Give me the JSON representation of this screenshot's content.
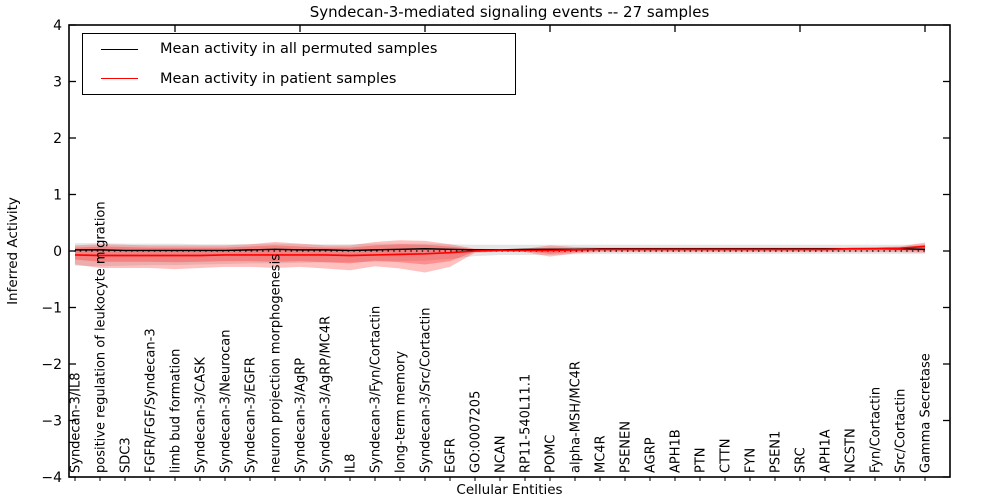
{
  "chart_data": {
    "type": "line",
    "title": "Syndecan-3-mediated signaling events -- 27 samples",
    "xlabel": "Cellular Entities",
    "ylabel": "Inferred Activity",
    "ylim": [
      -4,
      4
    ],
    "yticks": [
      -4,
      -3,
      -2,
      -1,
      0,
      1,
      2,
      3,
      4
    ],
    "grid": false,
    "legend_position": "upper left",
    "zero_reference_line": {
      "style": "dotted",
      "y": 0,
      "color": "#000000"
    },
    "categories": [
      "Syndecan-3/IL8",
      "positive regulation of leukocyte migration",
      "SDC3",
      "FGFR/FGF/Syndecan-3",
      "limb bud formation",
      "Syndecan-3/CASK",
      "Syndecan-3/Neurocan",
      "Syndecan-3/EGFR",
      "neuron projection morphogenesis",
      "Syndecan-3/AgRP",
      "Syndecan-3/AgRP/MC4R",
      "IL8",
      "Syndecan-3/Fyn/Cortactin",
      "long-term memory",
      "Syndecan-3/Src/Cortactin",
      "EGFR",
      "GO:0007205",
      "NCAN",
      "RP11-540L11.1",
      "POMC",
      "alpha-MSH/MC4R",
      "MC4R",
      "PSENEN",
      "AGRP",
      "APH1B",
      "PTN",
      "CTTN",
      "FYN",
      "PSEN1",
      "SRC",
      "APH1A",
      "NCSTN",
      "Fyn/Cortactin",
      "Src/Cortactin",
      "Gamma Secretase"
    ],
    "series": [
      {
        "name": "Mean activity in all permuted samples",
        "color": "#000000",
        "line_width": 1.4,
        "values": [
          0.02,
          0.02,
          0.01,
          0.01,
          0.01,
          0.01,
          0.01,
          0.02,
          0.03,
          0.02,
          0.02,
          0.01,
          0.02,
          0.03,
          0.04,
          0.03,
          0.02,
          0.02,
          0.03,
          0.03,
          0.03,
          0.04,
          0.04,
          0.04,
          0.04,
          0.04,
          0.04,
          0.04,
          0.04,
          0.04,
          0.04,
          0.04,
          0.04,
          0.04,
          0.03
        ]
      },
      {
        "name": "Mean activity in patient samples",
        "color": "#ff0000",
        "line_width": 1.7,
        "values": [
          -0.07,
          -0.08,
          -0.08,
          -0.08,
          -0.08,
          -0.08,
          -0.07,
          -0.07,
          -0.07,
          -0.07,
          -0.07,
          -0.08,
          -0.07,
          -0.06,
          -0.05,
          -0.03,
          0.0,
          0.01,
          0.01,
          0.01,
          0.02,
          0.03,
          0.03,
          0.03,
          0.03,
          0.03,
          0.03,
          0.03,
          0.03,
          0.03,
          0.03,
          0.04,
          0.04,
          0.05,
          0.08
        ]
      }
    ],
    "bands": [
      {
        "name": "permuted-samples-std-band",
        "fill": "rgba(0,0,0,0.10)",
        "upper": [
          0.14,
          0.14,
          0.13,
          0.13,
          0.13,
          0.12,
          0.12,
          0.12,
          0.13,
          0.12,
          0.12,
          0.12,
          0.13,
          0.13,
          0.13,
          0.12,
          0.11,
          0.11,
          0.11,
          0.11,
          0.11,
          0.11,
          0.11,
          0.11,
          0.11,
          0.11,
          0.11,
          0.11,
          0.11,
          0.11,
          0.11,
          0.11,
          0.11,
          0.11,
          0.12
        ],
        "lower": [
          -0.26,
          -0.27,
          -0.26,
          -0.25,
          -0.25,
          -0.24,
          -0.23,
          -0.22,
          -0.22,
          -0.21,
          -0.2,
          -0.2,
          -0.19,
          -0.18,
          -0.17,
          -0.14,
          -0.09,
          -0.07,
          -0.07,
          -0.07,
          -0.06,
          -0.05,
          -0.05,
          -0.05,
          -0.05,
          -0.05,
          -0.05,
          -0.05,
          -0.05,
          -0.05,
          -0.05,
          -0.05,
          -0.05,
          -0.05,
          -0.05
        ]
      },
      {
        "name": "patient-samples-std-band-outer",
        "fill": "rgba(255,30,30,0.28)",
        "upper": [
          0.1,
          0.12,
          0.11,
          0.1,
          0.1,
          0.1,
          0.1,
          0.12,
          0.16,
          0.13,
          0.1,
          0.1,
          0.16,
          0.19,
          0.18,
          0.12,
          0.04,
          0.03,
          0.04,
          0.1,
          0.07,
          0.06,
          0.06,
          0.06,
          0.06,
          0.06,
          0.06,
          0.06,
          0.06,
          0.06,
          0.06,
          0.06,
          0.07,
          0.08,
          0.15
        ],
        "lower": [
          -0.24,
          -0.3,
          -0.3,
          -0.3,
          -0.32,
          -0.3,
          -0.28,
          -0.28,
          -0.3,
          -0.28,
          -0.31,
          -0.34,
          -0.27,
          -0.31,
          -0.38,
          -0.28,
          -0.03,
          -0.01,
          -0.02,
          -0.1,
          -0.04,
          -0.02,
          -0.02,
          -0.02,
          -0.02,
          -0.02,
          -0.02,
          -0.02,
          -0.02,
          -0.02,
          -0.02,
          -0.02,
          -0.02,
          -0.02,
          -0.03
        ]
      },
      {
        "name": "patient-samples-std-band-inner",
        "fill": "rgba(255,30,30,0.30)",
        "upper": [
          0.06,
          0.08,
          0.07,
          0.06,
          0.06,
          0.06,
          0.06,
          0.08,
          0.1,
          0.08,
          0.06,
          0.06,
          0.1,
          0.12,
          0.11,
          0.08,
          0.03,
          0.02,
          0.03,
          0.06,
          0.05,
          0.05,
          0.05,
          0.05,
          0.05,
          0.05,
          0.05,
          0.05,
          0.05,
          0.05,
          0.05,
          0.05,
          0.05,
          0.06,
          0.11
        ],
        "lower": [
          -0.15,
          -0.19,
          -0.19,
          -0.19,
          -0.2,
          -0.19,
          -0.18,
          -0.18,
          -0.19,
          -0.18,
          -0.2,
          -0.22,
          -0.17,
          -0.2,
          -0.24,
          -0.18,
          -0.01,
          0.0,
          0.0,
          -0.05,
          -0.02,
          0.0,
          0.0,
          0.0,
          0.0,
          0.0,
          0.0,
          0.0,
          0.0,
          0.0,
          0.0,
          0.01,
          0.01,
          0.01,
          0.0
        ]
      }
    ]
  },
  "legend": {
    "items": [
      {
        "label": "Mean activity in all permuted samples",
        "color": "#000000"
      },
      {
        "label": "Mean activity in patient samples",
        "color": "#ff0000"
      }
    ]
  }
}
